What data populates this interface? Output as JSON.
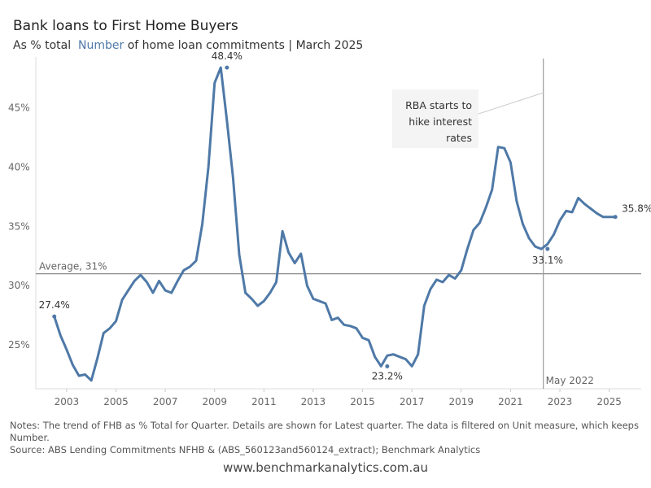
{
  "header": {
    "title": "Bank loans to First Home Buyers",
    "subtitle_pre": "As % total",
    "subtitle_highlight": "Number",
    "subtitle_post": "of home loan commitments | March 2025"
  },
  "chart_data": {
    "type": "line",
    "title": "Bank loans to First Home Buyers",
    "subtitle": "As % total Number of home loan commitments | March 2025",
    "xlabel": "",
    "ylabel": "",
    "xlim": [
      2001.75,
      2026.3
    ],
    "ylim": [
      21.3,
      49.3
    ],
    "x_ticks": [
      2003,
      2005,
      2007,
      2009,
      2011,
      2013,
      2015,
      2017,
      2019,
      2021,
      2023,
      2025
    ],
    "x_tick_labels": [
      "2003",
      "2005",
      "2007",
      "2009",
      "2011",
      "2013",
      "2015",
      "2017",
      "2019",
      "2021",
      "2023",
      "2025"
    ],
    "y_ticks": [
      25,
      30,
      35,
      40,
      45
    ],
    "y_tick_labels": [
      "25%",
      "30%",
      "35%",
      "40%",
      "45%"
    ],
    "grid": false,
    "line_color": "#4e79a7",
    "series": [
      {
        "x": [
          2002.5,
          2002.75,
          2003.0,
          2003.25,
          2003.5,
          2003.75,
          2004.0,
          2004.25,
          2004.5,
          2004.75,
          2005.0,
          2005.25,
          2005.5,
          2005.75,
          2006.0,
          2006.25,
          2006.5,
          2006.75,
          2007.0,
          2007.25,
          2007.5,
          2007.75,
          2008.0,
          2008.25,
          2008.5,
          2008.75,
          2009.0,
          2009.25,
          2009.5,
          2009.75,
          2010.0,
          2010.25,
          2010.5,
          2010.75,
          2011.0,
          2011.25,
          2011.5,
          2011.75,
          2012.0,
          2012.25,
          2012.5,
          2012.75,
          2013.0,
          2013.25,
          2013.5,
          2013.75,
          2014.0,
          2014.25,
          2014.5,
          2014.75,
          2015.0,
          2015.25,
          2015.5,
          2015.75,
          2016.0,
          2016.25,
          2016.5,
          2016.75,
          2017.0,
          2017.25,
          2017.5,
          2017.75,
          2018.0,
          2018.25,
          2018.5,
          2018.75,
          2019.0,
          2019.25,
          2019.5,
          2019.75,
          2020.0,
          2020.25,
          2020.5,
          2020.75,
          2021.0,
          2021.25,
          2021.5,
          2021.75,
          2022.0,
          2022.25,
          2022.5,
          2022.75,
          2023.0,
          2023.25,
          2023.5,
          2023.75,
          2024.0,
          2024.25,
          2024.5,
          2024.75,
          2025.0,
          2025.25
        ],
        "y": [
          27.4,
          25.8,
          24.6,
          23.3,
          22.4,
          22.5,
          22.0,
          23.9,
          26.0,
          26.4,
          27.0,
          28.8,
          29.6,
          30.4,
          30.9,
          30.3,
          29.4,
          30.4,
          29.6,
          29.4,
          30.4,
          31.3,
          31.6,
          32.1,
          35.2,
          40.0,
          47.1,
          48.4,
          43.9,
          39.1,
          32.6,
          29.4,
          28.9,
          28.3,
          28.7,
          29.4,
          30.3,
          34.6,
          32.8,
          31.9,
          32.7,
          30.0,
          28.9,
          28.7,
          28.5,
          27.1,
          27.3,
          26.7,
          26.6,
          26.4,
          25.6,
          25.4,
          24.0,
          23.2,
          24.1,
          24.2,
          24.0,
          23.8,
          23.2,
          24.2,
          28.3,
          29.7,
          30.5,
          30.3,
          30.9,
          30.6,
          31.3,
          33.1,
          34.7,
          35.3,
          36.6,
          38.1,
          41.7,
          41.6,
          40.4,
          37.1,
          35.2,
          34.0,
          33.3,
          33.1,
          33.5,
          34.3,
          35.5,
          36.3,
          36.2,
          37.4,
          36.9,
          36.5,
          36.1,
          35.8,
          35.8,
          35.8
        ]
      }
    ],
    "data_labels": [
      {
        "x": 2002.5,
        "y": 27.4,
        "text": "27.4%"
      },
      {
        "x": 2009.5,
        "y": 48.4,
        "text": "48.4%"
      },
      {
        "x": 2016.0,
        "y": 23.2,
        "text": "23.2%"
      },
      {
        "x": 2022.5,
        "y": 33.1,
        "text": "33.1%"
      },
      {
        "x": 2025.25,
        "y": 35.8,
        "text": "35.8%"
      }
    ],
    "reference_line": {
      "y": 31,
      "label": "Average, 31%"
    },
    "event_line": {
      "x": 2022.33,
      "label": "May 2022"
    },
    "annotation": {
      "lines": [
        "RBA starts to",
        "hike interest",
        "rates"
      ]
    }
  },
  "notes": {
    "line1": "Notes: The trend of FHB as % Total for Quarter.  Details are shown for Latest quarter. The data is filtered on Unit measure, which keeps Number.",
    "line2": "Source: ABS Lending Commitments NFHB &  (ABS_560123and560124_extract); Benchmark Analytics"
  },
  "footer": {
    "url": "www.benchmarkanalytics.com.au"
  }
}
